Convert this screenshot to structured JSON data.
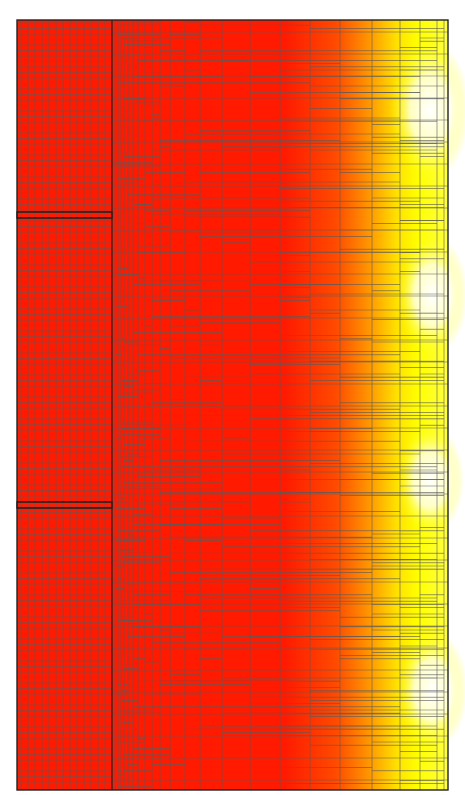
{
  "figure": {
    "description_visible_text": "",
    "colormap": {
      "low": "#ff1a00",
      "mid": "#ff8a00",
      "high": "#ffff00",
      "peak": "#ffffff"
    },
    "mesh_line_color": "#5a5a5a",
    "frame_color": "#222222",
    "vertical_bands": 3
  }
}
